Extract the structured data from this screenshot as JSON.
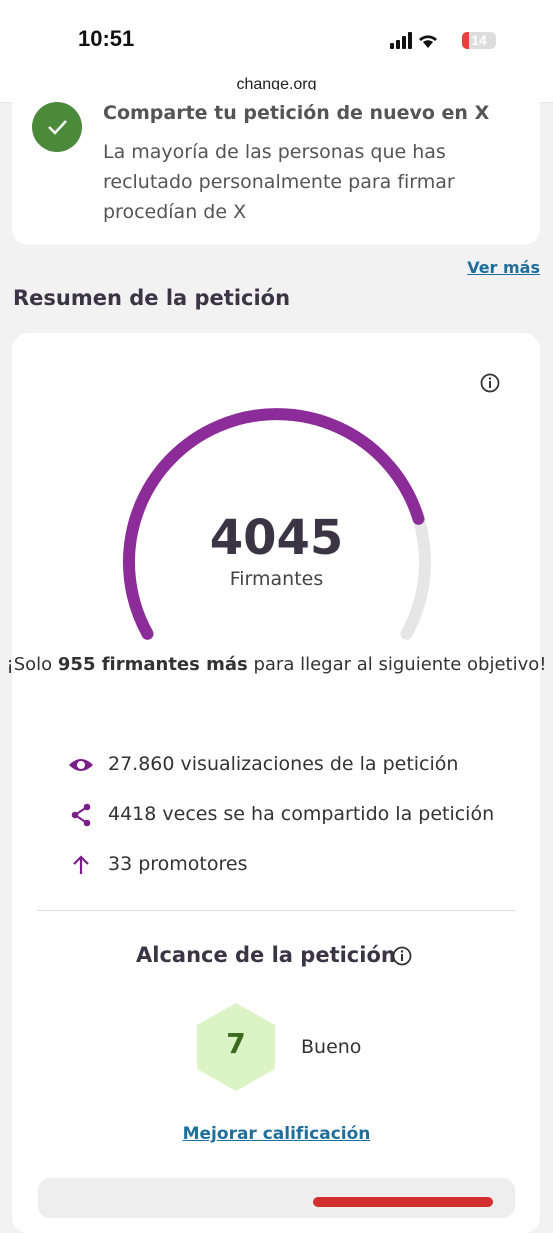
{
  "status_bar": {
    "time": "10:51",
    "battery": "14"
  },
  "address_bar": {
    "url": "change.org"
  },
  "suggestion_card": {
    "title": "Comparte tu petición de nuevo en X",
    "body": "La mayoría de las personas que has reclutado personalmente para firmar procedían de X"
  },
  "see_more": "Ver más",
  "summary": {
    "heading": "Resumen de la petición",
    "signers": "4045",
    "signers_label": "Firmantes",
    "goal": {
      "prefix": "¡Solo",
      "bold": "955 firmantes más",
      "suffix": "para llegar al siguiente objetivo!"
    },
    "stats": [
      "27.860 visualizaciones de la petición",
      "4418 veces se ha compartido la petición",
      "33 promotores"
    ]
  },
  "reach": {
    "heading": "Alcance de la petición",
    "score": "7",
    "rating": "Bueno",
    "improve": "Mejorar calificación"
  }
}
